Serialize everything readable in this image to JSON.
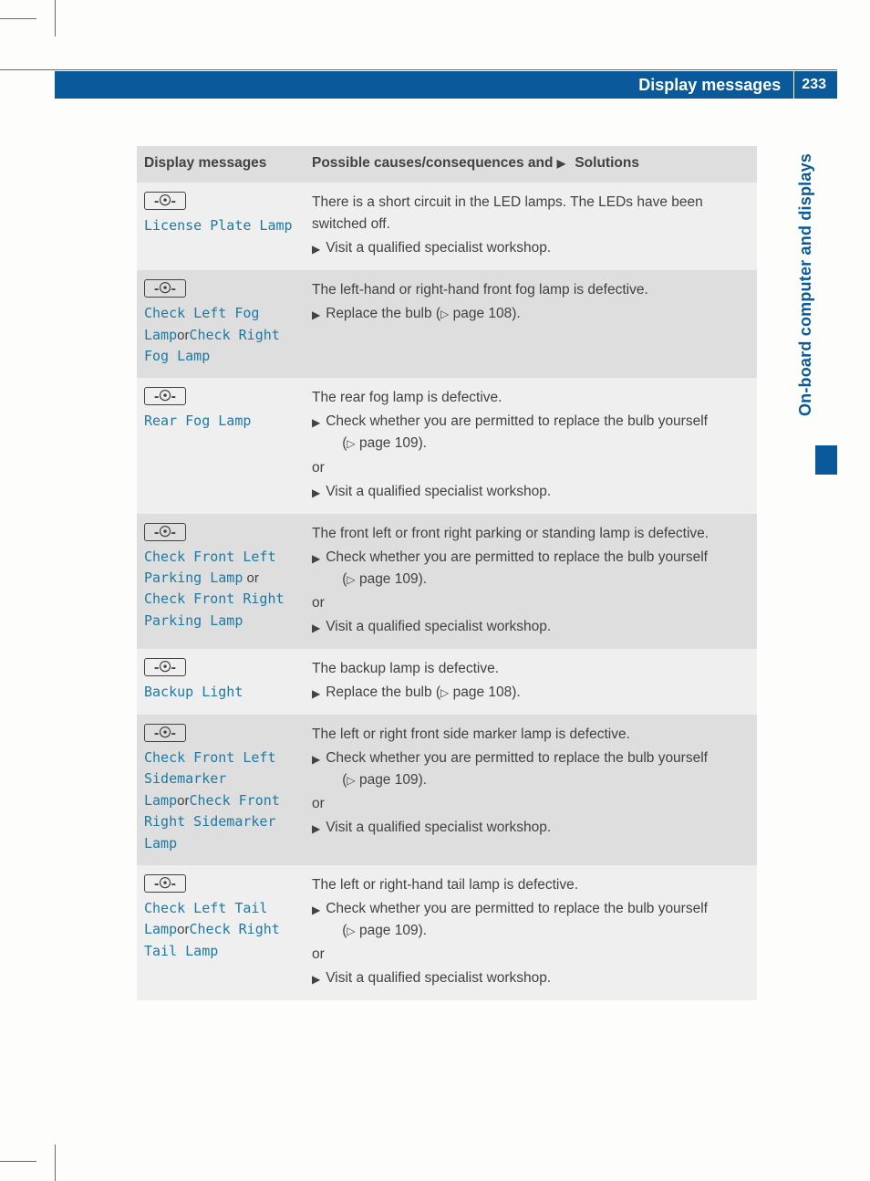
{
  "colors": {
    "brand_blue": "#0a5a9b",
    "msg_teal": "#1d7aa3",
    "row_light": "#efefef",
    "row_dark": "#dedede",
    "text": "#424242",
    "page_bg": "#fdfdfb"
  },
  "header": {
    "title": "Display messages",
    "page_number": "233"
  },
  "side_tab": "On-board computer and displays",
  "table": {
    "col1_header": "Display messages",
    "col2_header_prefix": "Possible causes/consequences and ",
    "col2_header_suffix": " Solutions"
  },
  "rows": [
    {
      "left_segments": [
        {
          "t": "msg",
          "v": "License Plate Lamp"
        }
      ],
      "cause": "There is a short circuit in the LED lamps. The LEDs have been switched off.",
      "solutions": [
        {
          "type": "step",
          "text": "Visit a qualified specialist workshop."
        }
      ]
    },
    {
      "left_segments": [
        {
          "t": "msg",
          "v": "Check Left Fog Lamp"
        },
        {
          "t": "or",
          "v": "or"
        },
        {
          "t": "msg",
          "v": "Check Right Fog Lamp"
        }
      ],
      "cause": "The left-hand or right-hand front fog lamp is defective.",
      "solutions": [
        {
          "type": "step_ref",
          "text": "Replace the bulb (",
          "ref": " page 108)."
        }
      ]
    },
    {
      "left_segments": [
        {
          "t": "msg",
          "v": "Rear Fog Lamp"
        }
      ],
      "cause": "The rear fog lamp is defective.",
      "solutions": [
        {
          "type": "step_ref_wrap",
          "text": "Check whether you are permitted to replace the bulb yourself",
          "ref_line": "( page 109)."
        },
        {
          "type": "or",
          "text": "or"
        },
        {
          "type": "step",
          "text": "Visit a qualified specialist workshop."
        }
      ]
    },
    {
      "left_segments": [
        {
          "t": "msg",
          "v": "Check Front Left Parking Lamp"
        },
        {
          "t": "or_sp",
          "v": " or "
        },
        {
          "t": "msg",
          "v": "Check Front Right Parking Lamp"
        }
      ],
      "cause": "The front left or front right parking or standing lamp is defective.",
      "solutions": [
        {
          "type": "step_ref_wrap",
          "text": "Check whether you are permitted to replace the bulb yourself",
          "ref_line": "( page 109)."
        },
        {
          "type": "or",
          "text": "or"
        },
        {
          "type": "step",
          "text": "Visit a qualified specialist workshop."
        }
      ]
    },
    {
      "left_segments": [
        {
          "t": "msg",
          "v": "Backup Light"
        }
      ],
      "cause": "The backup lamp is defective.",
      "solutions": [
        {
          "type": "step_ref",
          "text": "Replace the bulb (",
          "ref": " page 108)."
        }
      ]
    },
    {
      "left_segments": [
        {
          "t": "msg",
          "v": "Check Front Left Sidemarker Lamp"
        },
        {
          "t": "or",
          "v": "or"
        },
        {
          "t": "msg",
          "v": "Check Front Right Sidemarker Lamp"
        }
      ],
      "cause": "The left or right front side marker lamp is defective.",
      "solutions": [
        {
          "type": "step_ref_wrap",
          "text": "Check whether you are permitted to replace the bulb yourself",
          "ref_line": "( page 109)."
        },
        {
          "type": "or",
          "text": "or"
        },
        {
          "type": "step",
          "text": "Visit a qualified specialist workshop."
        }
      ]
    },
    {
      "left_segments": [
        {
          "t": "msg",
          "v": "Check Left Tail Lamp"
        },
        {
          "t": "or",
          "v": "or"
        },
        {
          "t": "msg",
          "v": "Check Right Tail Lamp"
        }
      ],
      "cause": "The left or right-hand tail lamp is defective.",
      "solutions": [
        {
          "type": "step_ref_wrap",
          "text": "Check whether you are permitted to replace the bulb yourself",
          "ref_line": "( page 109)."
        },
        {
          "type": "or",
          "text": "or"
        },
        {
          "type": "step",
          "text": "Visit a qualified specialist workshop."
        }
      ]
    }
  ]
}
